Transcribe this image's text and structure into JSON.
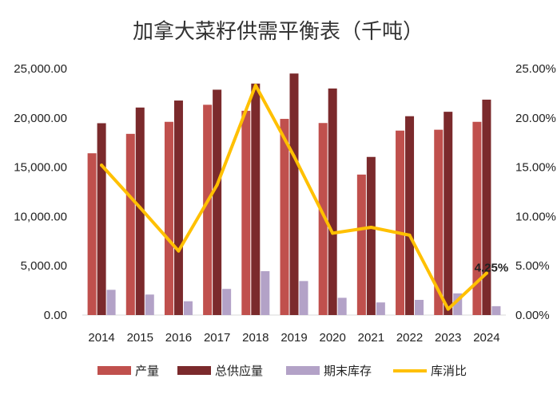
{
  "chart_data": {
    "type": "bar",
    "title": "加拿大菜籽供需平衡表（千吨）",
    "categories": [
      "2014",
      "2015",
      "2016",
      "2017",
      "2018",
      "2019",
      "2020",
      "2021",
      "2022",
      "2023",
      "2024"
    ],
    "series": [
      {
        "name": "产量",
        "kind": "bar",
        "axis": "left",
        "color": "#c0504d",
        "values": [
          16410,
          18380,
          19600,
          21330,
          20720,
          19900,
          19480,
          14250,
          18710,
          18800,
          19600
        ]
      },
      {
        "name": "总供应量",
        "kind": "bar",
        "axis": "left",
        "color": "#7b2a2c",
        "values": [
          19460,
          21050,
          21760,
          22860,
          23480,
          24500,
          22980,
          16040,
          20170,
          20620,
          21850
        ]
      },
      {
        "name": "期末库存",
        "kind": "bar",
        "axis": "left",
        "color": "#b3a2c7",
        "values": [
          2560,
          2080,
          1400,
          2650,
          4450,
          3450,
          1750,
          1280,
          1540,
          2200,
          900
        ]
      },
      {
        "name": "库消比",
        "kind": "line",
        "axis": "right",
        "color": "#ffc000",
        "values": [
          15.2,
          10.9,
          6.5,
          13.2,
          23.3,
          16.1,
          8.3,
          8.9,
          8.1,
          0.6,
          4.25
        ]
      }
    ],
    "y_left": {
      "ylim": [
        0,
        25000
      ],
      "ticks": [
        "0.00",
        "5,000.00",
        "10,000.00",
        "15,000.00",
        "20,000.00",
        "25,000.00"
      ]
    },
    "y_right": {
      "ylim": [
        0,
        25
      ],
      "ticks": [
        "0.00%",
        "5.00%",
        "10.00%",
        "15.00%",
        "20.00%",
        "25.00%"
      ]
    },
    "annotation": {
      "text": "4.25%",
      "series": "库消比",
      "index": 10
    },
    "legend": "bottom",
    "grid": false
  }
}
